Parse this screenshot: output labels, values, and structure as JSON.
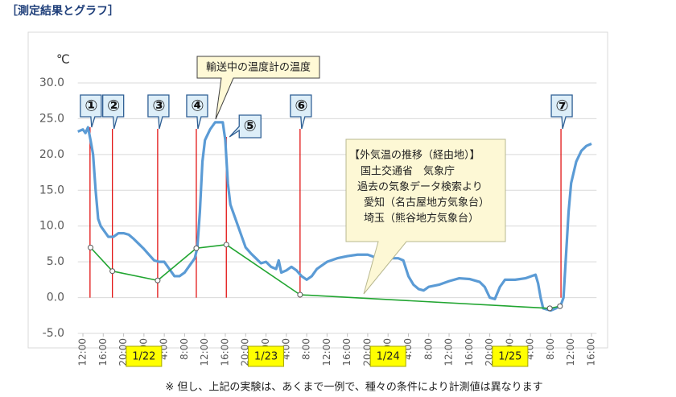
{
  "heading": "［測定結果とグラフ］",
  "note": "※ 但し、上記の実験は、あくまで一例で、種々の条件により計測値は異なります",
  "chart_data": {
    "type": "line",
    "y_unit": "℃",
    "xlim": [
      -1,
      101
    ],
    "ylim": [
      -5,
      30
    ],
    "yticks": [
      {
        "value": 30,
        "label": "30.0"
      },
      {
        "value": 25,
        "label": "25.0"
      },
      {
        "value": 20,
        "label": "20.0"
      },
      {
        "value": 15,
        "label": "15.0"
      },
      {
        "value": 10,
        "label": "10.0"
      },
      {
        "value": 5,
        "label": "5.0"
      },
      {
        "value": 0,
        "label": "0.0"
      },
      {
        "value": -5,
        "label": "-5.0"
      }
    ],
    "xticks": [
      {
        "value": 0,
        "label": "12:00"
      },
      {
        "value": 4,
        "label": "16:00"
      },
      {
        "value": 8,
        "label": "20:00"
      },
      {
        "value": 12,
        "label": "0:00"
      },
      {
        "value": 16,
        "label": "4:00"
      },
      {
        "value": 20,
        "label": "8:00"
      },
      {
        "value": 24,
        "label": "12:00"
      },
      {
        "value": 28,
        "label": "16:00"
      },
      {
        "value": 32,
        "label": "20:00"
      },
      {
        "value": 36,
        "label": "0:00"
      },
      {
        "value": 40,
        "label": "4:00"
      },
      {
        "value": 44,
        "label": "8:00"
      },
      {
        "value": 48,
        "label": "12:00"
      },
      {
        "value": 52,
        "label": "16:00"
      },
      {
        "value": 56,
        "label": "20:00"
      },
      {
        "value": 60,
        "label": "0:00"
      },
      {
        "value": 64,
        "label": "4:00"
      },
      {
        "value": 68,
        "label": "8:00"
      },
      {
        "value": 72,
        "label": "12:00"
      },
      {
        "value": 76,
        "label": "16:00"
      },
      {
        "value": 80,
        "label": "20:00"
      },
      {
        "value": 84,
        "label": "0:00"
      },
      {
        "value": 88,
        "label": "4:00"
      },
      {
        "value": 92,
        "label": "8:00"
      },
      {
        "value": 96,
        "label": "12:00"
      },
      {
        "value": 100,
        "label": "16:00"
      }
    ],
    "date_labels": [
      {
        "value": 12,
        "label": "1/22"
      },
      {
        "value": 36,
        "label": "1/23"
      },
      {
        "value": 60,
        "label": "1/24"
      },
      {
        "value": 84,
        "label": "1/25"
      }
    ],
    "series": [
      {
        "name": "輸送中の温度計の温度",
        "color": "#5b9bd5",
        "x": [
          -1,
          0,
          0.5,
          1,
          1.5,
          2,
          2.5,
          3,
          3.5,
          4,
          5,
          6,
          7,
          8,
          9,
          10,
          11,
          12,
          13,
          14,
          15,
          16,
          17,
          18,
          19,
          20,
          21,
          22,
          22.5,
          23,
          23.5,
          24,
          25,
          26,
          27.5,
          28,
          28.5,
          29,
          30,
          31,
          32,
          33,
          34,
          35,
          36,
          37,
          38,
          38.5,
          39,
          40,
          41,
          42,
          43,
          44,
          45,
          46,
          47,
          48,
          50,
          52,
          54,
          56,
          58,
          60,
          62,
          63,
          64,
          65,
          66,
          67,
          68,
          70,
          72,
          74,
          76,
          78,
          79,
          80,
          81,
          82,
          83,
          85,
          87,
          89,
          89.5,
          90,
          90.5,
          92,
          93,
          94,
          94.5,
          95,
          95.5,
          96,
          97,
          98,
          99,
          100
        ],
        "values": [
          23.2,
          23.5,
          23,
          23.8,
          22,
          20,
          15,
          11,
          10,
          9.5,
          8.5,
          8.5,
          9,
          9,
          8.8,
          8.2,
          7.5,
          6.8,
          6,
          5.2,
          5,
          5,
          4,
          3,
          3,
          3.5,
          4.5,
          5.5,
          7,
          12,
          19,
          22,
          23.5,
          24.5,
          24.5,
          22,
          16,
          13,
          11,
          9,
          7,
          6.2,
          5.5,
          4.8,
          5,
          4.3,
          4,
          5.2,
          3.5,
          3.8,
          4.3,
          3.8,
          3,
          2.5,
          3,
          4,
          4.5,
          5,
          5.5,
          5.8,
          6,
          6,
          5.5,
          5.5,
          5.5,
          5.2,
          3,
          1.8,
          1.2,
          1,
          1.5,
          1.8,
          2.3,
          2.7,
          2.6,
          2.2,
          1.5,
          0,
          -0.2,
          1.5,
          2.5,
          2.5,
          2.7,
          3.2,
          2,
          0,
          -1.5,
          -1.8,
          -1.5,
          -1,
          0,
          6,
          12,
          16,
          19,
          20.5,
          21.2,
          21.5
        ]
      },
      {
        "name": "【外気温の推移（経由地）】",
        "color": "#21a531",
        "x": [
          1.5,
          5.8,
          14.7,
          22.3,
          28.2,
          42.7,
          91.8,
          93.8
        ],
        "values": [
          7,
          3.7,
          2.4,
          6.9,
          7.4,
          0.4,
          -1.5,
          -1.2
        ]
      }
    ],
    "events": {
      "color": "#e00000",
      "labels": [
        "①",
        "②",
        "③",
        "④",
        "⑤",
        "⑥",
        "⑦"
      ],
      "x": [
        1.4,
        5.8,
        14.7,
        22.3,
        28.2,
        42.7,
        94
      ]
    },
    "source_lines": [
      "国土交通省　気象庁",
      "過去の気象データ検索より",
      "愛知（名古屋地方気象台）",
      "埼玉（熊谷地方気象台）"
    ]
  }
}
